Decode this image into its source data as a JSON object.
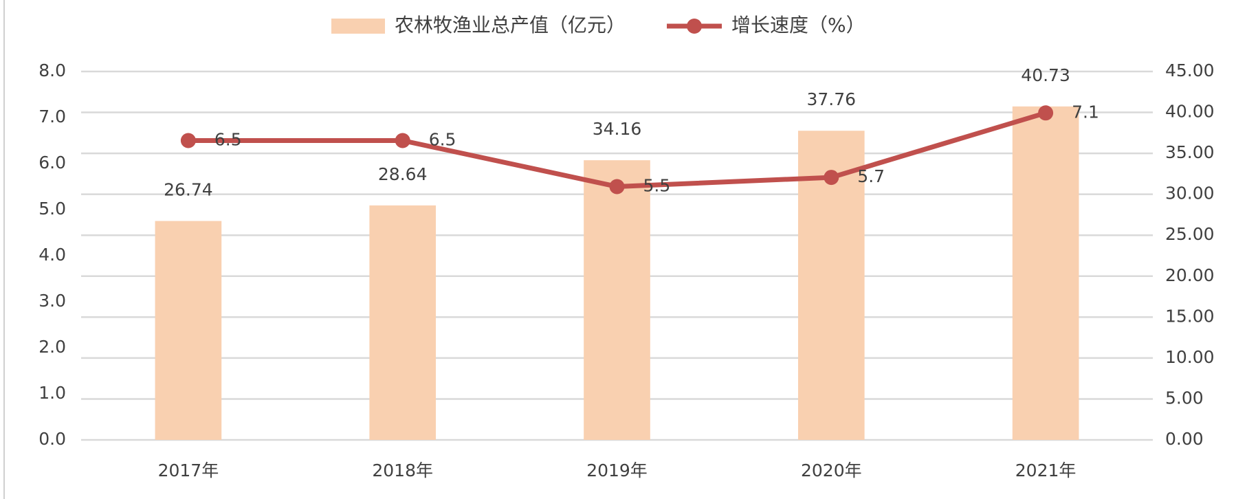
{
  "chart_data": {
    "type": "bar-line",
    "categories": [
      "2017年",
      "2018年",
      "2019年",
      "2020年",
      "2021年"
    ],
    "series": [
      {
        "name": "农林牧渔业总产值（亿元）",
        "type": "bar",
        "axis": "y2",
        "color": "#f9d0b0",
        "values": [
          26.74,
          28.64,
          34.16,
          37.76,
          40.73
        ]
      },
      {
        "name": "增长速度（%）",
        "type": "line",
        "axis": "y",
        "color": "#c0504d",
        "values": [
          6.5,
          6.5,
          5.5,
          5.7,
          7.1
        ]
      }
    ],
    "ylim": [
      0,
      8
    ],
    "yticks": [
      {
        "value": 0,
        "label": "0.0"
      },
      {
        "value": 1,
        "label": "1.0"
      },
      {
        "value": 2,
        "label": "2.0"
      },
      {
        "value": 3,
        "label": "3.0"
      },
      {
        "value": 4,
        "label": "4.0"
      },
      {
        "value": 5,
        "label": "5.0"
      },
      {
        "value": 6,
        "label": "6.0"
      },
      {
        "value": 7,
        "label": "7.0"
      },
      {
        "value": 8,
        "label": "8.0"
      }
    ],
    "y2lim": [
      0,
      45
    ],
    "y2ticks": [
      {
        "value": 0,
        "label": "0.00"
      },
      {
        "value": 5,
        "label": "5.00"
      },
      {
        "value": 10,
        "label": "10.00"
      },
      {
        "value": 15,
        "label": "15.00"
      },
      {
        "value": 20,
        "label": "20.00"
      },
      {
        "value": 25,
        "label": "25.00"
      },
      {
        "value": 30,
        "label": "30.00"
      },
      {
        "value": 35,
        "label": "35.00"
      },
      {
        "value": 40,
        "label": "40.00"
      },
      {
        "value": 45,
        "label": "45.00"
      }
    ],
    "grid": true,
    "legend": "top"
  }
}
